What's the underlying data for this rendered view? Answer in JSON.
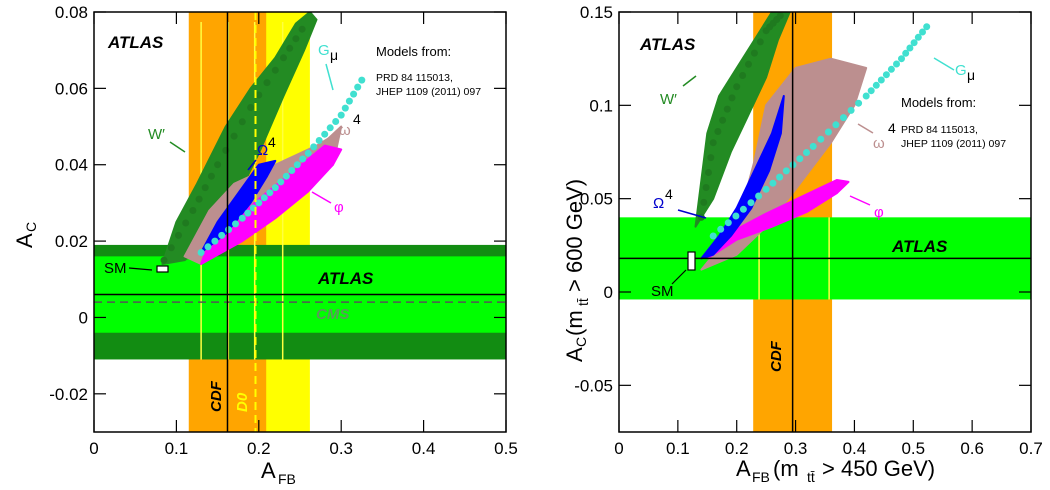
{
  "chart_data": [
    {
      "type": "scatter",
      "xlabel": "A_FB",
      "ylabel": "A_C",
      "xlim": [
        0,
        0.5
      ],
      "ylim": [
        -0.03,
        0.08
      ],
      "xticks": [
        "0",
        "0.1",
        "0.2",
        "0.3",
        "0.4",
        "0.5"
      ],
      "yticks": [
        "-0.02",
        "0",
        "0.02",
        "0.04",
        "0.06",
        "0.08"
      ],
      "xtick_values": [
        0,
        0.1,
        0.2,
        0.3,
        0.4,
        0.5
      ],
      "ytick_values": [
        -0.02,
        0,
        0.02,
        0.04,
        0.06,
        0.08
      ],
      "labels": {
        "atlas_logo": "ATLAS",
        "models_from": "Models from:",
        "ref1": "PRD 84 115013,",
        "ref2": "JHEP 1109 (2011) 097",
        "cdf": "CDF",
        "d0": "D0",
        "cms": "CMS",
        "atlas_band": "ATLAS",
        "sm": "SM",
        "wprime": "W′",
        "gmu": "G",
        "gmu_sub": "μ",
        "omega_cap": "Ω",
        "omega_cap_sup": "4",
        "omega_small": "ω",
        "omega_small_sup": "4",
        "phi": "φ"
      },
      "measurements": {
        "atlas": {
          "central": 0.006,
          "inner": [
            -0.004,
            0.016
          ],
          "outer": [
            -0.011,
            0.019
          ]
        },
        "cms": {
          "central": 0.004
        },
        "cdf": {
          "central": 0.162,
          "band": [
            0.115,
            0.209
          ],
          "band2_edges": [
            0.13,
            0.195
          ]
        },
        "d0": {
          "central": 0.196,
          "band": [
            0.128,
            0.262
          ],
          "band2_edges": [
            0.163,
            0.229
          ]
        }
      },
      "sm_point": {
        "x": 0.087,
        "y": 0.0125
      },
      "series": [
        {
          "name": "W′",
          "color": "#238b23",
          "points": [
            [
              0.085,
              0.015
            ],
            [
              0.12,
              0.03
            ],
            [
              0.14,
              0.04
            ],
            [
              0.17,
              0.05
            ],
            [
              0.2,
              0.058
            ],
            [
              0.23,
              0.068
            ],
            [
              0.25,
              0.075
            ],
            [
              0.26,
              0.078
            ]
          ]
        },
        {
          "name": "Gμ",
          "color": "#40e0d0",
          "points": [
            [
              0.13,
              0.018
            ],
            [
              0.18,
              0.028
            ],
            [
              0.22,
              0.036
            ],
            [
              0.26,
              0.045
            ],
            [
              0.3,
              0.055
            ],
            [
              0.33,
              0.064
            ]
          ]
        },
        {
          "name": "Ω4",
          "color": "#0000ff",
          "points": [
            [
              0.13,
              0.017
            ],
            [
              0.16,
              0.024
            ],
            [
              0.18,
              0.03
            ],
            [
              0.2,
              0.036
            ],
            [
              0.22,
              0.04
            ]
          ]
        },
        {
          "name": "ω4",
          "color": "#bc8f8f",
          "points": [
            [
              0.12,
              0.016
            ],
            [
              0.16,
              0.025
            ],
            [
              0.2,
              0.03
            ],
            [
              0.25,
              0.036
            ],
            [
              0.28,
              0.042
            ],
            [
              0.3,
              0.05
            ]
          ]
        },
        {
          "name": "φ",
          "color": "#ff00ff",
          "points": [
            [
              0.13,
              0.015
            ],
            [
              0.17,
              0.02
            ],
            [
              0.2,
              0.025
            ],
            [
              0.24,
              0.031
            ],
            [
              0.27,
              0.037
            ],
            [
              0.3,
              0.042
            ]
          ]
        }
      ]
    },
    {
      "type": "scatter",
      "xlabel": "A_FB (m_tt̄ > 450 GeV)",
      "ylabel": "A_C (m_tt̄ > 600 GeV)",
      "xlim": [
        0,
        0.7
      ],
      "ylim": [
        -0.075,
        0.15
      ],
      "xticks": [
        "0",
        "0.1",
        "0.2",
        "0.3",
        "0.4",
        "0.5",
        "0.6",
        "0.7"
      ],
      "yticks": [
        "-0.05",
        "0",
        "0.05",
        "0.1",
        "0.15"
      ],
      "xtick_values": [
        0,
        0.1,
        0.2,
        0.3,
        0.4,
        0.5,
        0.6,
        0.7
      ],
      "ytick_values": [
        -0.05,
        0,
        0.05,
        0.1,
        0.15
      ],
      "labels": {
        "atlas_logo": "ATLAS",
        "models_from": "Models from:",
        "ref1": "PRD 84 115013,",
        "ref2": "JHEP 1109 (2011) 097",
        "cdf": "CDF",
        "atlas_band": "ATLAS",
        "sm": "SM",
        "wprime": "W′",
        "gmu": "G",
        "gmu_sub": "μ",
        "omega_cap": "Ω",
        "omega_cap_sup": "4",
        "omega_small": "ω",
        "omega_small_sup": "4",
        "phi": "φ",
        "xlabel_main": "A",
        "xlabel_sub": "FB",
        "xlabel_rest": " (m",
        "xlabel_tt": "tt̄",
        "xlabel_end": " > 450 GeV)",
        "ylabel_main": "A",
        "ylabel_sub": "C",
        "ylabel_rest": " (m",
        "ylabel_tt": "tt̄",
        "ylabel_end": " > 600 GeV)"
      },
      "measurements": {
        "atlas": {
          "central": 0.018,
          "band": [
            -0.004,
            0.04
          ]
        },
        "cdf": {
          "central": 0.295,
          "band": [
            0.228,
            0.362
          ]
        }
      },
      "sm_point": {
        "x": 0.127,
        "y": 0.02
      },
      "series": [
        {
          "name": "W′",
          "color": "#238b23",
          "points": [
            [
              0.13,
              0.04
            ],
            [
              0.15,
              0.08
            ],
            [
              0.2,
              0.115
            ],
            [
              0.24,
              0.14
            ],
            [
              0.28,
              0.15
            ]
          ]
        },
        {
          "name": "Gμ",
          "color": "#40e0d0",
          "points": [
            [
              0.15,
              0.03
            ],
            [
              0.25,
              0.055
            ],
            [
              0.35,
              0.085
            ],
            [
              0.45,
              0.118
            ],
            [
              0.53,
              0.145
            ]
          ]
        },
        {
          "name": "Ω4",
          "color": "#0000ff",
          "points": [
            [
              0.14,
              0.02
            ],
            [
              0.2,
              0.045
            ],
            [
              0.24,
              0.07
            ],
            [
              0.27,
              0.095
            ],
            [
              0.28,
              0.105
            ]
          ]
        },
        {
          "name": "ω4",
          "color": "#bc8f8f",
          "points": [
            [
              0.14,
              0.015
            ],
            [
              0.22,
              0.045
            ],
            [
              0.27,
              0.075
            ],
            [
              0.35,
              0.105
            ],
            [
              0.42,
              0.12
            ]
          ]
        },
        {
          "name": "φ",
          "color": "#ff00ff",
          "points": [
            [
              0.15,
              0.015
            ],
            [
              0.22,
              0.03
            ],
            [
              0.3,
              0.042
            ],
            [
              0.36,
              0.052
            ],
            [
              0.39,
              0.059
            ]
          ]
        }
      ]
    }
  ]
}
